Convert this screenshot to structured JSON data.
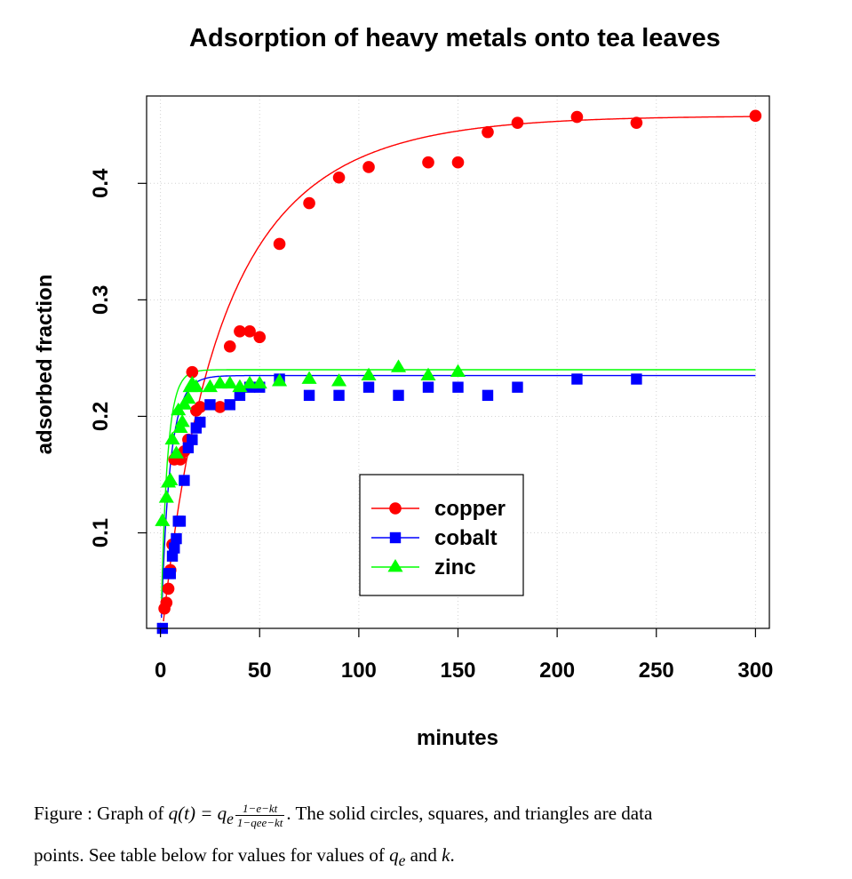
{
  "chart_data": {
    "type": "scatter",
    "title": "Adsorption of heavy metals onto tea leaves",
    "xlabel": "minutes",
    "ylabel": "adsorbed fraction",
    "xlim": [
      -7,
      307
    ],
    "ylim": [
      0.018,
      0.475
    ],
    "x_ticks": [
      0,
      50,
      100,
      150,
      200,
      250,
      300
    ],
    "y_ticks": [
      0.1,
      0.2,
      0.3,
      0.4
    ],
    "grid": true,
    "legend_position": "lower-center",
    "series": [
      {
        "name": "copper",
        "marker": "circle",
        "color": "#ff0000",
        "fit": {
          "qe": 0.458,
          "k": 0.0198
        },
        "x": [
          2,
          3,
          4,
          5,
          6,
          7,
          8,
          10,
          12,
          14,
          16,
          18,
          20,
          30,
          35,
          40,
          45,
          50,
          60,
          75,
          90,
          105,
          135,
          150,
          165,
          180,
          210,
          240,
          300
        ],
        "y": [
          0.035,
          0.04,
          0.052,
          0.068,
          0.09,
          0.163,
          0.165,
          0.163,
          0.17,
          0.18,
          0.238,
          0.205,
          0.208,
          0.208,
          0.26,
          0.273,
          0.273,
          0.268,
          0.348,
          0.383,
          0.405,
          0.414,
          0.418,
          0.418,
          0.444,
          0.452,
          0.457,
          0.452,
          0.458
        ]
      },
      {
        "name": "cobalt",
        "marker": "square",
        "color": "#0000ff",
        "fit": {
          "qe": 0.235,
          "k": 0.19
        },
        "x": [
          1,
          4,
          5,
          6,
          7,
          8,
          9,
          10,
          12,
          14,
          16,
          18,
          20,
          25,
          35,
          40,
          45,
          50,
          60,
          75,
          90,
          105,
          120,
          135,
          150,
          165,
          180,
          210,
          240
        ],
        "y": [
          0.018,
          0.065,
          0.065,
          0.08,
          0.087,
          0.095,
          0.11,
          0.11,
          0.145,
          0.173,
          0.18,
          0.19,
          0.195,
          0.21,
          0.21,
          0.218,
          0.225,
          0.225,
          0.232,
          0.218,
          0.218,
          0.225,
          0.218,
          0.225,
          0.225,
          0.218,
          0.225,
          0.232,
          0.232
        ]
      },
      {
        "name": "zinc",
        "marker": "triangle",
        "color": "#00ff00",
        "fit": {
          "qe": 0.24,
          "k": 0.27
        },
        "x": [
          1,
          3,
          4,
          5,
          6,
          8,
          9,
          10,
          11,
          12,
          14,
          15,
          16,
          18,
          25,
          30,
          35,
          40,
          45,
          50,
          60,
          75,
          90,
          105,
          120,
          135,
          150
        ],
        "y": [
          0.11,
          0.13,
          0.143,
          0.145,
          0.18,
          0.168,
          0.205,
          0.19,
          0.195,
          0.21,
          0.215,
          0.225,
          0.228,
          0.225,
          0.225,
          0.228,
          0.228,
          0.225,
          0.228,
          0.228,
          0.23,
          0.232,
          0.23,
          0.235,
          0.242,
          0.235,
          0.238
        ]
      }
    ]
  },
  "caption": {
    "prefix": "Figure :  Graph of ",
    "formula_lhs": "q(t) = q",
    "formula_sub": "e",
    "frac_num": "1−e−kt",
    "frac_den": "1−qee−kt",
    "suffix_line1": ". The solid circles, squares, and triangles are data",
    "line2_prefix": "points. See table below for values for values of ",
    "qe_symbol": "q",
    "qe_sub": "e",
    "and_word": " and ",
    "k_symbol": "k",
    "end": "."
  }
}
